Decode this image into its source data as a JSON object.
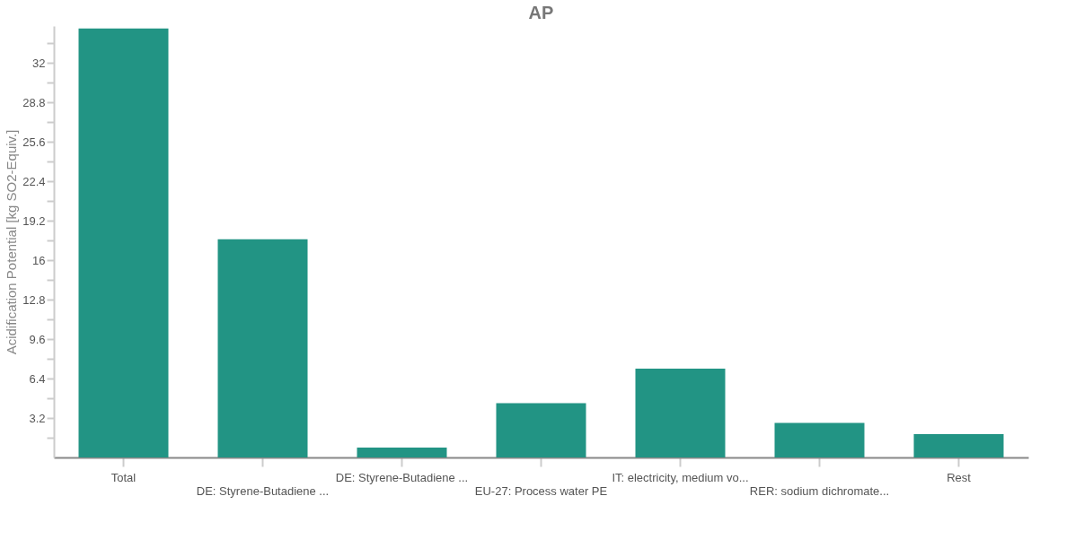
{
  "chart_data": {
    "type": "bar",
    "title": "AP",
    "ylabel": "Acidification Potential [kg SO2-Equiv.]",
    "categories": [
      "Total",
      "DE: Styrene-Butadiene ...",
      "DE: Styrene-Butadiene ...",
      "EU-27: Process water PE",
      "IT: electricity, medium vo...",
      "RER: sodium dichromate...",
      "Rest"
    ],
    "values": [
      34.8,
      17.7,
      0.8,
      4.4,
      7.2,
      2.8,
      1.9
    ],
    "color": "#229484",
    "ylim": [
      0,
      35
    ],
    "yticks": [
      {
        "value": 1.6,
        "label": null
      },
      3.2,
      {
        "value": 4.8,
        "label": null
      },
      6.4,
      {
        "value": 8,
        "label": null
      },
      9.6,
      {
        "value": 11.2,
        "label": null
      },
      12.8,
      {
        "value": 14.4,
        "label": null
      },
      16,
      {
        "value": 17.6,
        "label": null
      },
      19.2,
      {
        "value": 20.8,
        "label": null
      },
      22.4,
      {
        "value": 24,
        "label": null
      },
      25.6,
      {
        "value": 27.2,
        "label": null
      },
      28.8,
      {
        "value": 30.4,
        "label": null
      },
      32,
      {
        "value": 33.6,
        "label": null
      }
    ],
    "grid": false
  }
}
